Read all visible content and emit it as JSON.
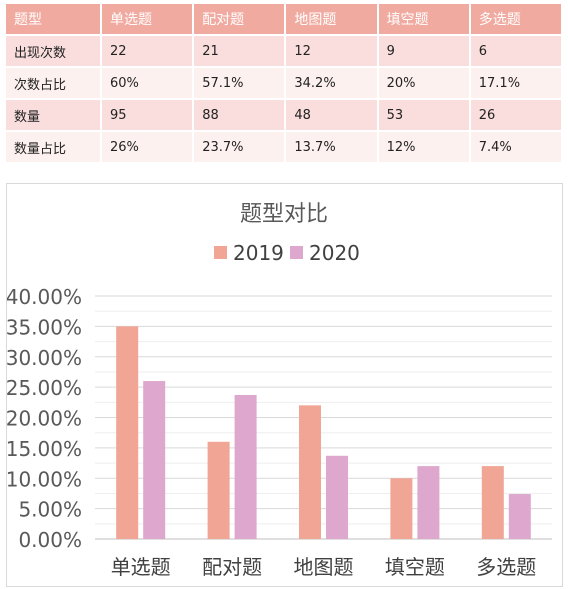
{
  "table": {
    "header": [
      "题型",
      "单选题",
      "配对题",
      "地图题",
      "填空题",
      "多选题"
    ],
    "rows": [
      [
        "出现次数",
        "22",
        "21",
        "12",
        "9",
        "6"
      ],
      [
        "次数占比",
        "60%",
        "57.1%",
        "34.2%",
        "20%",
        "17.1%"
      ],
      [
        "数量",
        "95",
        "88",
        "48",
        "53",
        "26"
      ],
      [
        "数量占比",
        "26%",
        "23.7%",
        "13.7%",
        "12%",
        "7.4%"
      ]
    ]
  },
  "chart_data": {
    "type": "bar",
    "title": "题型对比",
    "categories": [
      "单选题",
      "配对题",
      "地图题",
      "填空题",
      "多选题"
    ],
    "series": [
      {
        "name": "2019",
        "values": [
          0.35,
          0.16,
          0.22,
          0.1,
          0.12
        ],
        "color": "#f0a595"
      },
      {
        "name": "2020",
        "values": [
          0.26,
          0.237,
          0.137,
          0.12,
          0.074
        ],
        "color": "#dea7cd"
      }
    ],
    "ylim": [
      0,
      0.4
    ],
    "yticks": [
      "0.00%",
      "5.00%",
      "10.00%",
      "15.00%",
      "20.00%",
      "25.00%",
      "30.00%",
      "35.00%",
      "40.00%"
    ],
    "grid": true,
    "legend_position": "top"
  }
}
